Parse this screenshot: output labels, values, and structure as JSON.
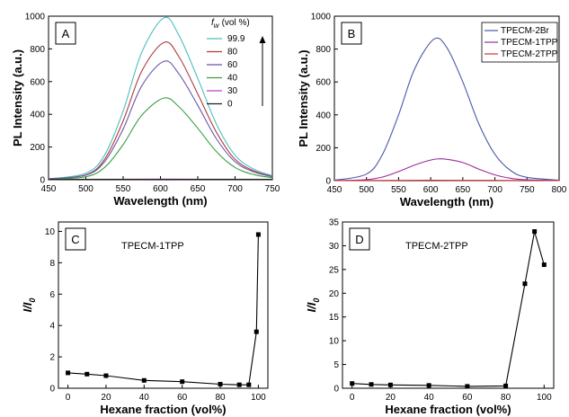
{
  "chart_data": [
    {
      "panel": "A",
      "type": "line",
      "xlabel": "Wavelength (nm)",
      "ylabel": "PL Intensity (a.u.)",
      "xlim": [
        450,
        750
      ],
      "ylim": [
        0,
        1000
      ],
      "xticks": [
        450,
        500,
        550,
        600,
        650,
        700,
        750
      ],
      "yticks": [
        0,
        200,
        400,
        600,
        800,
        1000
      ],
      "legend_title_sym": "f",
      "legend_title_sub": "w",
      "legend_title_rest": "(vol %)",
      "legend_position": "top-right",
      "series": [
        {
          "name": "99.9",
          "color": "#4bc0c0",
          "values": [
            [
              450,
              5
            ],
            [
              500,
              40
            ],
            [
              525,
              150
            ],
            [
              550,
              420
            ],
            [
              575,
              780
            ],
            [
              605,
              990
            ],
            [
              625,
              880
            ],
            [
              650,
              620
            ],
            [
              675,
              340
            ],
            [
              700,
              150
            ],
            [
              725,
              65
            ],
            [
              750,
              25
            ]
          ]
        },
        {
          "name": "80",
          "color": "#b03a3a",
          "values": [
            [
              450,
              5
            ],
            [
              500,
              30
            ],
            [
              525,
              125
            ],
            [
              550,
              360
            ],
            [
              575,
              665
            ],
            [
              605,
              840
            ],
            [
              625,
              750
            ],
            [
              650,
              525
            ],
            [
              675,
              290
            ],
            [
              700,
              125
            ],
            [
              725,
              55
            ],
            [
              750,
              20
            ]
          ]
        },
        {
          "name": "60",
          "color": "#6a55a8",
          "values": [
            [
              450,
              5
            ],
            [
              500,
              28
            ],
            [
              525,
              110
            ],
            [
              550,
              310
            ],
            [
              575,
              575
            ],
            [
              605,
              725
            ],
            [
              625,
              645
            ],
            [
              650,
              455
            ],
            [
              675,
              250
            ],
            [
              700,
              110
            ],
            [
              725,
              48
            ],
            [
              750,
              18
            ]
          ]
        },
        {
          "name": "40",
          "color": "#3aa040",
          "values": [
            [
              450,
              3
            ],
            [
              500,
              18
            ],
            [
              525,
              75
            ],
            [
              550,
              215
            ],
            [
              575,
              395
            ],
            [
              605,
              500
            ],
            [
              625,
              445
            ],
            [
              650,
              315
            ],
            [
              675,
              172
            ],
            [
              700,
              75
            ],
            [
              725,
              32
            ],
            [
              750,
              12
            ]
          ]
        },
        {
          "name": "30",
          "color": "#c040c0",
          "values": [
            [
              450,
              2
            ],
            [
              600,
              4
            ],
            [
              750,
              2
            ]
          ]
        },
        {
          "name": "0",
          "color": "#202020",
          "values": [
            [
              450,
              2
            ],
            [
              600,
              3
            ],
            [
              750,
              2
            ]
          ]
        }
      ]
    },
    {
      "panel": "B",
      "type": "line",
      "xlabel": "Wavelength (nm)",
      "ylabel": "PL Intensity (a.u.)",
      "xlim": [
        450,
        800
      ],
      "ylim": [
        0,
        1000
      ],
      "xticks": [
        450,
        500,
        550,
        600,
        650,
        700,
        750,
        800
      ],
      "yticks": [
        0,
        200,
        400,
        600,
        800,
        1000
      ],
      "legend_position": "top-right",
      "series": [
        {
          "name": "TPECM-2Br",
          "color": "#4a5aa8",
          "values": [
            [
              450,
              2
            ],
            [
              500,
              40
            ],
            [
              525,
              160
            ],
            [
              550,
              400
            ],
            [
              575,
              680
            ],
            [
              605,
              860
            ],
            [
              625,
              810
            ],
            [
              650,
              600
            ],
            [
              675,
              345
            ],
            [
              700,
              160
            ],
            [
              725,
              60
            ],
            [
              750,
              20
            ],
            [
              800,
              3
            ]
          ]
        },
        {
          "name": "TPECM-1TPP",
          "color": "#9a2a9a",
          "values": [
            [
              450,
              0
            ],
            [
              500,
              6
            ],
            [
              525,
              22
            ],
            [
              550,
              55
            ],
            [
              575,
              95
            ],
            [
              600,
              125
            ],
            [
              620,
              132
            ],
            [
              650,
              110
            ],
            [
              675,
              70
            ],
            [
              700,
              35
            ],
            [
              725,
              14
            ],
            [
              750,
              5
            ],
            [
              800,
              0
            ]
          ]
        },
        {
          "name": "TPECM-2TPP",
          "color": "#d03030",
          "values": [
            [
              450,
              0
            ],
            [
              600,
              2
            ],
            [
              800,
              0
            ]
          ]
        }
      ]
    },
    {
      "panel": "C",
      "type": "line",
      "annotation": "TPECM-1TPP",
      "xlabel": "Hexane fraction (vol%)",
      "ylabel_main": "I",
      "ylabel_sub": "0",
      "xlim": [
        -5,
        105
      ],
      "ylim": [
        0,
        10.6
      ],
      "xticks": [
        0,
        20,
        40,
        60,
        80,
        100
      ],
      "yticks": [
        0,
        2,
        4,
        6,
        8,
        10
      ],
      "series": [
        {
          "color": "#000000",
          "values": [
            [
              0,
              0.98
            ],
            [
              10,
              0.9
            ],
            [
              20,
              0.8
            ],
            [
              40,
              0.5
            ],
            [
              60,
              0.42
            ],
            [
              80,
              0.26
            ],
            [
              90,
              0.22
            ],
            [
              95,
              0.22
            ],
            [
              99,
              3.6
            ],
            [
              100,
              9.8
            ]
          ]
        }
      ]
    },
    {
      "panel": "D",
      "type": "line",
      "annotation": "TPECM-2TPP",
      "xlabel": "Hexane fraction (vol%)",
      "ylabel_main": "I",
      "ylabel_sub": "0",
      "xlim": [
        -5,
        105
      ],
      "ylim": [
        0,
        35
      ],
      "xticks": [
        0,
        20,
        40,
        60,
        80,
        100
      ],
      "yticks": [
        0,
        5,
        10,
        15,
        20,
        25,
        30,
        35
      ],
      "series": [
        {
          "color": "#000000",
          "values": [
            [
              0,
              1.0
            ],
            [
              10,
              0.8
            ],
            [
              20,
              0.7
            ],
            [
              40,
              0.6
            ],
            [
              60,
              0.4
            ],
            [
              80,
              0.5
            ],
            [
              90,
              22
            ],
            [
              95,
              33
            ],
            [
              100,
              26
            ]
          ]
        }
      ]
    }
  ]
}
